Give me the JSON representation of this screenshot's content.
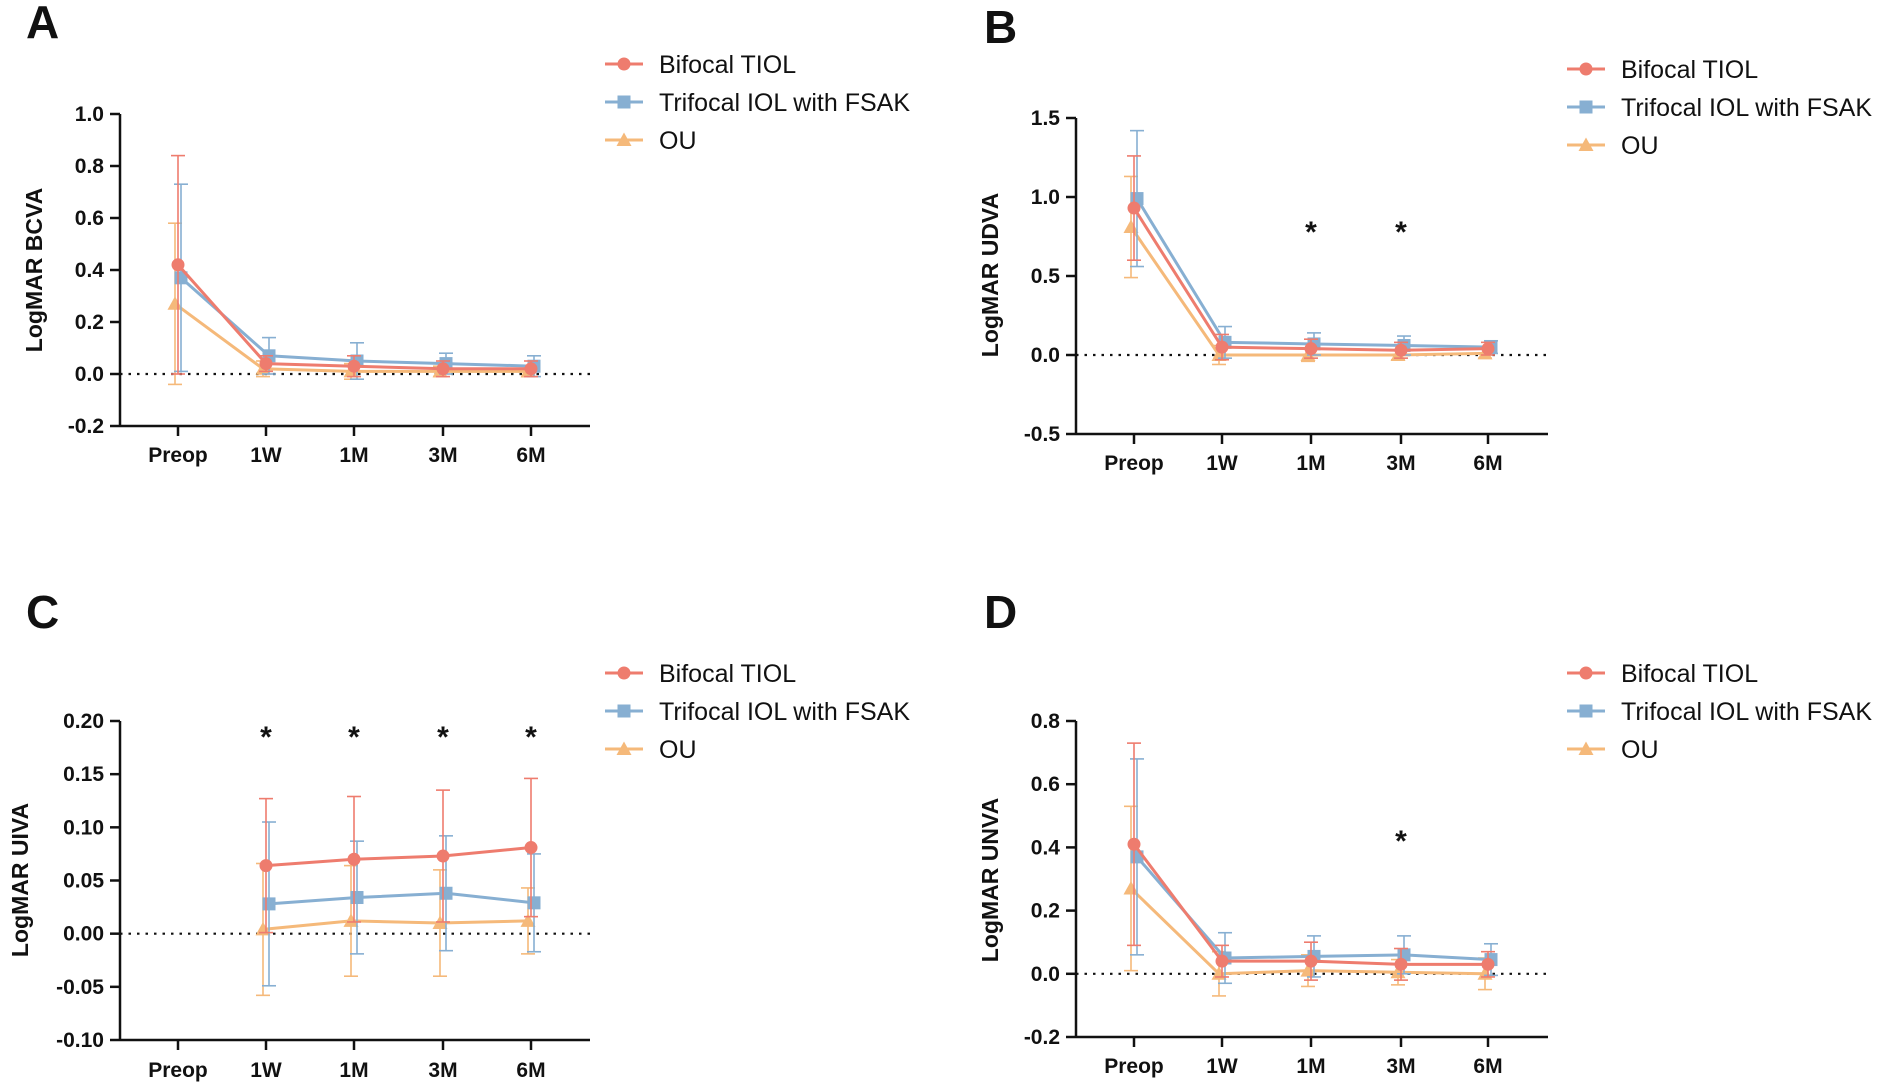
{
  "figure": {
    "legend": [
      {
        "name": "Bifocal TIOL",
        "marker": "circle",
        "color": "#EE7C6E"
      },
      {
        "name": "Trifocal IOL with FSAK",
        "marker": "square",
        "color": "#87AFD2"
      },
      {
        "name": "OU",
        "marker": "triangle",
        "color": "#F5B97A"
      }
    ]
  },
  "chart_data": [
    {
      "panel": "A",
      "type": "line",
      "title": "",
      "xlabel": "",
      "ylabel": "LogMAR BCVA",
      "categories": [
        "Preop",
        "1W",
        "1M",
        "3M",
        "6M"
      ],
      "ylim": [
        -0.2,
        1.0
      ],
      "yticks": [
        "1.0",
        "0.8",
        "0.6",
        "0.4",
        "0.2",
        "0.0",
        "-0.2"
      ],
      "ytick_values": [
        1.0,
        0.8,
        0.6,
        0.4,
        0.2,
        0.0,
        -0.2
      ],
      "reference_line": 0,
      "series": [
        {
          "name": "Bifocal TIOL",
          "values": [
            0.42,
            0.04,
            0.03,
            0.02,
            0.02
          ],
          "errors": [
            0.42,
            0.03,
            0.04,
            0.03,
            0.03
          ]
        },
        {
          "name": "Trifocal IOL with FSAK",
          "values": [
            0.37,
            0.07,
            0.05,
            0.04,
            0.03
          ],
          "errors": [
            0.36,
            0.07,
            0.07,
            0.04,
            0.04
          ]
        },
        {
          "name": "OU",
          "values": [
            0.27,
            0.02,
            0.01,
            0.01,
            0.01
          ],
          "errors": [
            0.31,
            0.03,
            0.03,
            0.02,
            0.02
          ]
        }
      ],
      "significance": [
        null,
        null,
        null,
        null,
        null
      ]
    },
    {
      "panel": "B",
      "type": "line",
      "title": "",
      "xlabel": "",
      "ylabel": "LogMAR UDVA",
      "categories": [
        "Preop",
        "1W",
        "1M",
        "3M",
        "6M"
      ],
      "ylim": [
        -0.5,
        1.5
      ],
      "yticks": [
        "1.5",
        "1.0",
        "0.5",
        "0.0",
        "-0.5"
      ],
      "ytick_values": [
        1.5,
        1.0,
        0.5,
        0.0,
        -0.5
      ],
      "reference_line": 0,
      "series": [
        {
          "name": "Bifocal TIOL",
          "values": [
            0.93,
            0.05,
            0.04,
            0.03,
            0.04
          ],
          "errors": [
            0.33,
            0.08,
            0.06,
            0.05,
            0.04
          ]
        },
        {
          "name": "Trifocal IOL with FSAK",
          "values": [
            0.99,
            0.08,
            0.07,
            0.06,
            0.05
          ],
          "errors": [
            0.43,
            0.1,
            0.07,
            0.06,
            0.04
          ]
        },
        {
          "name": "OU",
          "values": [
            0.81,
            0.0,
            0.0,
            0.0,
            0.01
          ],
          "errors": [
            0.32,
            0.06,
            0.04,
            0.03,
            0.03
          ]
        }
      ],
      "significance": [
        null,
        null,
        "*",
        "*",
        null
      ]
    },
    {
      "panel": "C",
      "type": "line",
      "title": "",
      "xlabel": "",
      "ylabel": "LogMAR UIVA",
      "categories": [
        "Preop",
        "1W",
        "1M",
        "3M",
        "6M"
      ],
      "ylim": [
        -0.1,
        0.2
      ],
      "yticks": [
        "0.20",
        "0.15",
        "0.10",
        "0.05",
        "0.00",
        "-0.05",
        "-0.10"
      ],
      "ytick_values": [
        0.2,
        0.15,
        0.1,
        0.05,
        0.0,
        -0.05,
        -0.1
      ],
      "reference_line": 0,
      "series": [
        {
          "name": "Bifocal TIOL",
          "values": [
            null,
            0.064,
            0.07,
            0.073,
            0.081
          ],
          "errors": [
            null,
            0.063,
            0.059,
            0.062,
            0.065
          ]
        },
        {
          "name": "Trifocal IOL with FSAK",
          "values": [
            null,
            0.028,
            0.034,
            0.038,
            0.029
          ],
          "errors": [
            null,
            0.077,
            0.053,
            0.054,
            0.046
          ]
        },
        {
          "name": "OU",
          "values": [
            null,
            0.004,
            0.012,
            0.01,
            0.012
          ],
          "errors": [
            null,
            0.062,
            0.052,
            0.05,
            0.031
          ]
        }
      ],
      "significance": [
        null,
        "*",
        "*",
        "*",
        "*"
      ]
    },
    {
      "panel": "D",
      "type": "line",
      "title": "",
      "xlabel": "",
      "ylabel": "LogMAR UNVA",
      "categories": [
        "Preop",
        "1W",
        "1M",
        "3M",
        "6M"
      ],
      "ylim": [
        -0.2,
        0.8
      ],
      "yticks": [
        "0.8",
        "0.6",
        "0.4",
        "0.2",
        "0.0",
        "-0.2"
      ],
      "ytick_values": [
        0.8,
        0.6,
        0.4,
        0.2,
        0.0,
        -0.2
      ],
      "reference_line": 0,
      "series": [
        {
          "name": "Bifocal TIOL",
          "values": [
            0.41,
            0.04,
            0.04,
            0.03,
            0.03
          ],
          "errors": [
            0.32,
            0.05,
            0.06,
            0.05,
            0.04
          ]
        },
        {
          "name": "Trifocal IOL with FSAK",
          "values": [
            0.37,
            0.05,
            0.055,
            0.06,
            0.045
          ],
          "errors": [
            0.31,
            0.08,
            0.065,
            0.06,
            0.05
          ]
        },
        {
          "name": "OU",
          "values": [
            0.27,
            0.0,
            0.01,
            0.005,
            0.0
          ],
          "errors": [
            0.26,
            0.07,
            0.05,
            0.04,
            0.05
          ]
        }
      ],
      "significance": [
        null,
        null,
        null,
        "*",
        null
      ]
    }
  ]
}
